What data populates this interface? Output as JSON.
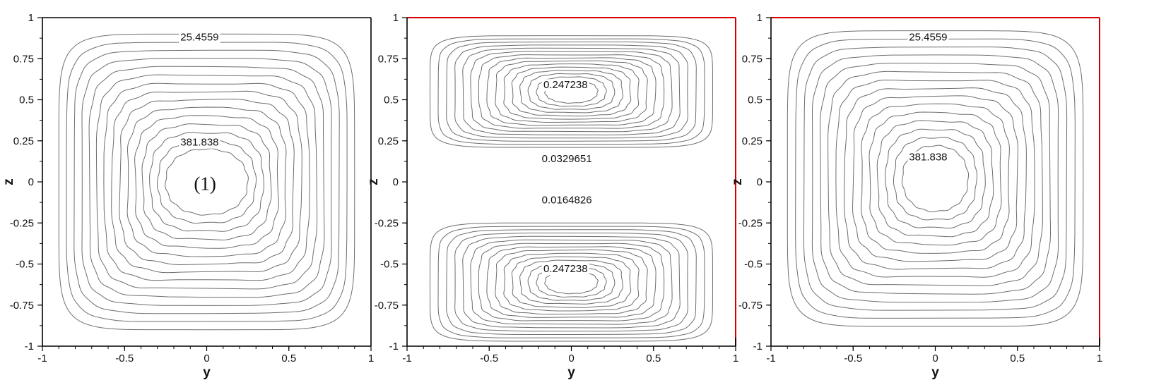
{
  "chart_data": [
    {
      "type": "contour",
      "xlabel": "y",
      "ylabel": "z",
      "xlim": [
        -1,
        1
      ],
      "ylim": [
        -1,
        1
      ],
      "x_ticks": [
        "-1",
        "-0.5",
        "0",
        "0.5",
        "1"
      ],
      "y_ticks": [
        "-1",
        "-0.75",
        "-0.5",
        "-0.25",
        "0",
        "0.25",
        "0.5",
        "0.75",
        "1"
      ],
      "highlighted_edges": [],
      "highlight_color": "#d40000",
      "contour_sets": [
        {
          "center": [
            0,
            0
          ],
          "semi_axis_min": [
            0.25,
            0.2
          ],
          "semi_axis_max": [
            0.9,
            0.9
          ],
          "levels": 15
        }
      ],
      "contour_labels": [
        {
          "text": "25.4559",
          "y": -0.16,
          "z": 0.86
        },
        {
          "text": "381.838",
          "y": -0.16,
          "z": 0.22
        }
      ],
      "annotations": [
        {
          "text": "(1)",
          "y": -0.01,
          "z": -0.01
        }
      ]
    },
    {
      "type": "contour",
      "xlabel": "y",
      "ylabel": "z",
      "xlim": [
        -1,
        1
      ],
      "ylim": [
        -1,
        1
      ],
      "x_ticks": [
        "-1",
        "-0.5",
        "0",
        "0.5",
        "1"
      ],
      "y_ticks": [
        "-1",
        "-0.75",
        "-0.5",
        "-0.25",
        "0",
        "0.25",
        "0.5",
        "0.75",
        "1"
      ],
      "highlighted_edges": [
        "top",
        "right"
      ],
      "highlight_color": "#d40000",
      "contour_sets": [
        {
          "center": [
            0,
            0.55
          ],
          "semi_axis_min": [
            0.16,
            0.07
          ],
          "semi_axis_max": [
            0.86,
            0.34
          ],
          "levels": 15
        },
        {
          "center": [
            0,
            -0.61
          ],
          "semi_axis_min": [
            0.16,
            0.07
          ],
          "semi_axis_max": [
            0.86,
            0.36
          ],
          "levels": 15
        }
      ],
      "contour_labels": [
        {
          "text": "0.247238",
          "y": -0.17,
          "z": 0.57
        },
        {
          "text": "0.0329651",
          "y": -0.18,
          "z": 0.12
        },
        {
          "text": "0.0164826",
          "y": -0.18,
          "z": -0.13
        },
        {
          "text": "0.247238",
          "y": -0.17,
          "z": -0.55
        }
      ],
      "annotations": []
    },
    {
      "type": "contour",
      "xlabel": "y",
      "ylabel": "z",
      "xlim": [
        -1,
        1
      ],
      "ylim": [
        -1,
        1
      ],
      "x_ticks": [
        "-1",
        "-0.5",
        "0",
        "0.5",
        "1"
      ],
      "y_ticks": [
        "-1",
        "-0.75",
        "-0.5",
        "-0.25",
        "0",
        "0.25",
        "0.5",
        "0.75",
        "1"
      ],
      "highlighted_edges": [
        "top",
        "right"
      ],
      "highlight_color": "#d40000",
      "contour_sets": [
        {
          "center": [
            0,
            0.02
          ],
          "semi_axis_min": [
            0.2,
            0.2
          ],
          "semi_axis_max": [
            0.9,
            0.9
          ],
          "levels": 15
        }
      ],
      "contour_labels": [
        {
          "text": "25.4559",
          "y": -0.16,
          "z": 0.86
        },
        {
          "text": "381.838",
          "y": -0.16,
          "z": 0.13
        }
      ],
      "annotations": []
    }
  ]
}
